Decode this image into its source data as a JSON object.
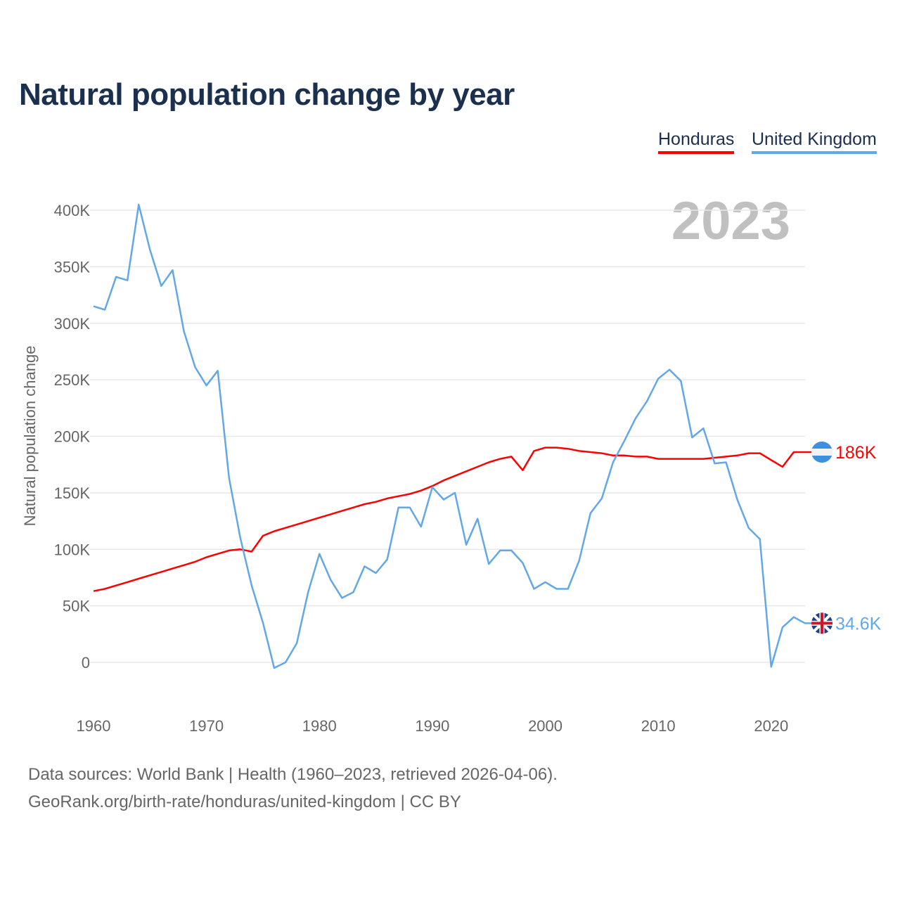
{
  "title": "Natural population change by year",
  "legend": [
    {
      "label": "Honduras",
      "color": "#ff0000"
    },
    {
      "label": "United Kingdom",
      "color": "#62a8e8"
    }
  ],
  "footer": {
    "line1": "Data sources: World Bank | Health (1960–2023, retrieved 2026-04-06).",
    "line2": "GeoRank.org/birth-rate/honduras/united-kingdom | CC BY"
  },
  "chart_data": {
    "type": "line",
    "title": "Natural population change by year",
    "xlabel": "",
    "ylabel": "Natural population change",
    "year_watermark": "2023",
    "xlim": [
      1960,
      2023
    ],
    "ylim": [
      -50000,
      400000
    ],
    "x_ticks": [
      1960,
      1970,
      1980,
      1990,
      2000,
      2010,
      2020
    ],
    "y_ticks": [
      0,
      50000,
      100000,
      150000,
      200000,
      250000,
      300000,
      350000,
      400000
    ],
    "y_tick_labels": [
      "0",
      "50K",
      "100K",
      "150K",
      "200K",
      "250K",
      "300K",
      "350K",
      "400K"
    ],
    "grid": true,
    "legend_position": "top-right",
    "x": [
      1960,
      1961,
      1962,
      1963,
      1964,
      1965,
      1966,
      1967,
      1968,
      1969,
      1970,
      1971,
      1972,
      1973,
      1974,
      1975,
      1976,
      1977,
      1978,
      1979,
      1980,
      1981,
      1982,
      1983,
      1984,
      1985,
      1986,
      1987,
      1988,
      1989,
      1990,
      1991,
      1992,
      1993,
      1994,
      1995,
      1996,
      1997,
      1998,
      1999,
      2000,
      2001,
      2002,
      2003,
      2004,
      2005,
      2006,
      2007,
      2008,
      2009,
      2010,
      2011,
      2012,
      2013,
      2014,
      2015,
      2016,
      2017,
      2018,
      2019,
      2020,
      2021,
      2022,
      2023
    ],
    "series": [
      {
        "name": "Honduras",
        "color": "#ff0000",
        "end_label": "186K",
        "values": [
          63000,
          65000,
          68000,
          71000,
          74000,
          77000,
          80000,
          83000,
          86000,
          89000,
          93000,
          96000,
          99000,
          100000,
          98000,
          112000,
          116000,
          119000,
          122000,
          125000,
          128000,
          131000,
          134000,
          137000,
          140000,
          142000,
          145000,
          147000,
          149000,
          152000,
          156000,
          161000,
          165000,
          169000,
          173000,
          177000,
          180000,
          182000,
          170000,
          187000,
          190000,
          190000,
          189000,
          187000,
          186000,
          185000,
          183000,
          183000,
          182000,
          182000,
          180000,
          180000,
          180000,
          180000,
          180000,
          181000,
          182000,
          183000,
          185000,
          185000,
          179000,
          173000,
          186000,
          186000
        ]
      },
      {
        "name": "United Kingdom",
        "color": "#62a8e8",
        "end_label": "34.6K",
        "values": [
          315000,
          312000,
          341000,
          338000,
          405000,
          365000,
          333000,
          347000,
          293000,
          261000,
          245000,
          258000,
          163000,
          110000,
          68000,
          35000,
          -5000,
          0,
          17000,
          62000,
          96000,
          73000,
          57000,
          62000,
          85000,
          79000,
          91000,
          137000,
          137000,
          120000,
          155000,
          144000,
          150000,
          104000,
          127000,
          87000,
          99000,
          99000,
          88000,
          65000,
          71000,
          65000,
          65000,
          90000,
          132000,
          145000,
          177000,
          196000,
          216000,
          231000,
          251000,
          259000,
          249000,
          199000,
          207000,
          176000,
          177000,
          144000,
          119000,
          109000,
          -4000,
          31000,
          40000,
          34600
        ]
      }
    ]
  }
}
